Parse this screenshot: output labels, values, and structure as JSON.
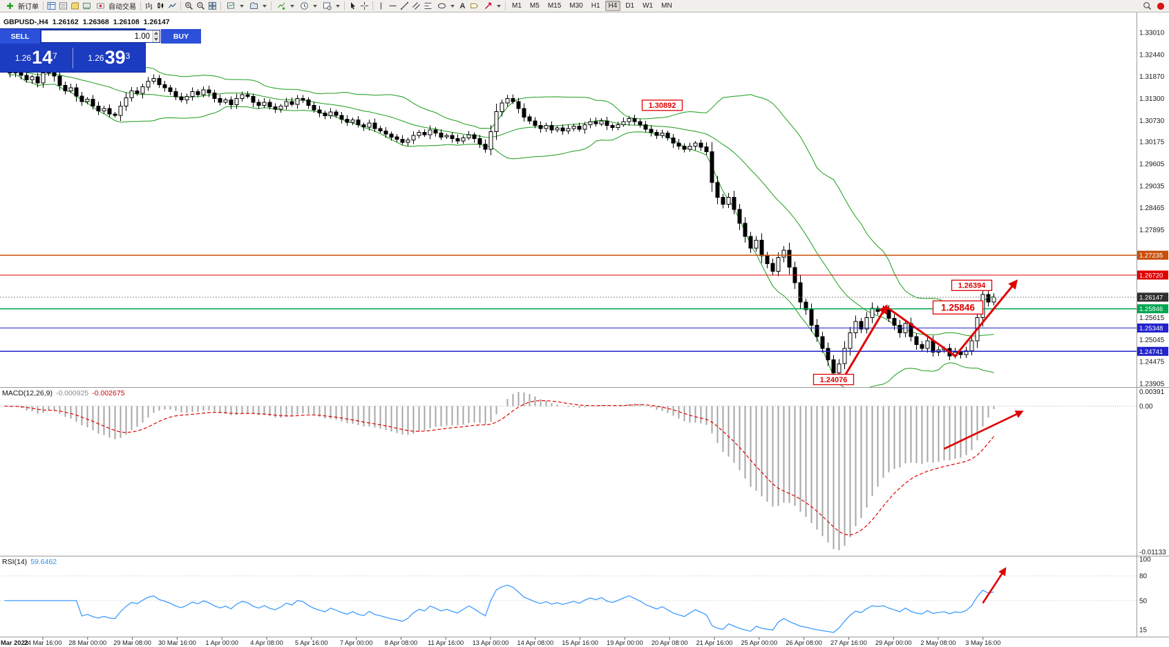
{
  "toolbar": {
    "new_order": "新订单",
    "autotrading": "自动交易",
    "text_tool_glyph": "A",
    "timeframes": [
      "M1",
      "M5",
      "M15",
      "M30",
      "H1",
      "H4",
      "D1",
      "W1",
      "MN"
    ],
    "active_timeframe": "H4"
  },
  "symbol_header": {
    "symbol": "GBPUSD-,H4",
    "open": "1.26162",
    "high": "1.26368",
    "low": "1.26108",
    "close": "1.26147"
  },
  "panel": {
    "sell_label": "SELL",
    "buy_label": "BUY",
    "volume": "1.00",
    "sell_price": {
      "prefix": "1.26",
      "big": "14",
      "sup": "7"
    },
    "buy_price": {
      "prefix": "1.26",
      "big": "39",
      "sup": "3"
    }
  },
  "indicators": {
    "bollinger": {
      "period": 20,
      "deviation": 2
    },
    "macd": {
      "label": "MACD(12,26,9)",
      "value1": "-0.000925",
      "value2": "-0.002675",
      "fast": 12,
      "slow": 26,
      "signal": 9
    },
    "rsi": {
      "label": "RSI(14)",
      "value": "59.6462",
      "period": 14
    }
  },
  "axes": {
    "price_labels": [
      "1.33010",
      "1.32440",
      "1.31870",
      "1.31300",
      "1.30730",
      "1.30175",
      "1.29605",
      "1.29035",
      "1.28465",
      "1.27895",
      "1.25615",
      "1.25045",
      "1.24475",
      "1.23905"
    ],
    "level_boxes": [
      {
        "text": "1.27235",
        "price": 1.27235,
        "color": "#C8500A"
      },
      {
        "text": "1.26720",
        "price": 1.2672,
        "color": "#E00000"
      },
      {
        "text": "1.25846",
        "price": 1.25846,
        "color": "#00A650"
      },
      {
        "text": "1.25348",
        "price": 1.25348,
        "color": "#2323CC"
      },
      {
        "text": "1.24741",
        "price": 1.24741,
        "color": "#2323CC"
      }
    ],
    "current_price": {
      "text": "1.26147",
      "price": 1.26147,
      "color": "#2F2F2F"
    },
    "macd_labels": [
      "0.00391",
      "0.00",
      "-0.01133"
    ],
    "rsi_labels": [
      {
        "text": "100",
        "value": 100
      },
      {
        "text": "80",
        "value": 80
      },
      {
        "text": "50",
        "value": 50
      },
      {
        "text": "15",
        "value": 15
      }
    ],
    "dates": [
      "Mar 2022",
      "24 Mar 16:00",
      "28 Mar 00:00",
      "29 Mar 08:00",
      "30 Mar 16:00",
      "1 Apr 00:00",
      "4 Apr 08:00",
      "5 Apr 16:00",
      "7 Apr 00:00",
      "8 Apr 08:00",
      "11 Apr 16:00",
      "13 Apr 00:00",
      "14 Apr 08:00",
      "15 Apr 16:00",
      "19 Apr 00:00",
      "20 Apr 08:00",
      "21 Apr 16:00",
      "25 Apr 00:00",
      "26 Apr 08:00",
      "27 Apr 16:00",
      "29 Apr 00:00",
      "2 May 08:00",
      "3 May 16:00"
    ]
  },
  "annotations": {
    "boxes": [
      {
        "text": "1.30892",
        "idx": 119,
        "price": 1.31124,
        "size": "small"
      },
      {
        "text": "1.26394",
        "idx": 175,
        "price": 1.26454,
        "size": "small"
      },
      {
        "text": "1.25846",
        "idx": 172.5,
        "price": 1.2588,
        "size": "large"
      },
      {
        "text": "1.24076",
        "idx": 150,
        "price": 1.24012,
        "size": "small"
      }
    ],
    "trend": [
      [
        152,
        1.241
      ],
      [
        159.5,
        1.259
      ],
      [
        172,
        1.2462
      ],
      [
        183,
        1.2655
      ]
    ],
    "macd_arrow": {
      "from": [
        170,
        -0.0037
      ],
      "to": [
        184,
        -0.0005
      ]
    },
    "rsi_arrow": {
      "from": [
        177,
        47
      ],
      "to": [
        181,
        88
      ]
    }
  },
  "chart_data": {
    "type": "candlestick",
    "symbol": "GBPUSD",
    "timeframe": "H4",
    "indicators": [
      "Bollinger Bands(20,2)",
      "MACD(12,26,9)",
      "RSI(14)"
    ],
    "price_range": {
      "top": 1.33531,
      "bottom": 1.23815
    },
    "closes": [
      1.3208,
      1.3196,
      1.3211,
      1.319,
      1.3178,
      1.3186,
      1.317,
      1.3196,
      1.3212,
      1.3188,
      1.3164,
      1.315,
      1.3158,
      1.3136,
      1.3122,
      1.3128,
      1.311,
      1.3098,
      1.3104,
      1.309,
      1.3086,
      1.311,
      1.3132,
      1.315,
      1.3143,
      1.316,
      1.3175,
      1.3182,
      1.3166,
      1.3158,
      1.3148,
      1.3134,
      1.3126,
      1.3135,
      1.3148,
      1.314,
      1.3152,
      1.3144,
      1.313,
      1.312,
      1.3126,
      1.3114,
      1.313,
      1.314,
      1.3135,
      1.312,
      1.3112,
      1.312,
      1.3108,
      1.3102,
      1.311,
      1.3122,
      1.3115,
      1.313,
      1.3126,
      1.3112,
      1.31,
      1.3092,
      1.3085,
      1.3095,
      1.3086,
      1.3076,
      1.3068,
      1.3074,
      1.3062,
      1.3056,
      1.3066,
      1.3052,
      1.3046,
      1.3038,
      1.303,
      1.3024,
      1.3016,
      1.3022,
      1.3034,
      1.3042,
      1.3036,
      1.3048,
      1.304,
      1.303,
      1.3034,
      1.3026,
      1.302,
      1.3028,
      1.3036,
      1.3026,
      1.3012,
      1.2998,
      1.3044,
      1.3096,
      1.3118,
      1.313,
      1.3122,
      1.3104,
      1.3082,
      1.3072,
      1.306,
      1.3052,
      1.306,
      1.3048,
      1.3054,
      1.3046,
      1.3052,
      1.3058,
      1.305,
      1.3062,
      1.307,
      1.3064,
      1.3072,
      1.306,
      1.3055,
      1.3062,
      1.307,
      1.3078,
      1.307,
      1.3062,
      1.305,
      1.3042,
      1.3034,
      1.304,
      1.3028,
      1.3014,
      1.3006,
      1.2998,
      1.3006,
      1.3014,
      1.3004,
      1.2992,
      1.2912,
      1.2874,
      1.2856,
      1.2874,
      1.2842,
      1.2806,
      1.2772,
      1.2742,
      1.2762,
      1.2722,
      1.2702,
      1.2682,
      1.2718,
      1.2736,
      1.2692,
      1.2652,
      1.2602,
      1.2582,
      1.2542,
      1.2512,
      1.2482,
      1.2452,
      1.2418,
      1.2442,
      1.2482,
      1.2522,
      1.2552,
      1.2532,
      1.2562,
      1.2586,
      1.2578,
      1.2584,
      1.256,
      1.2542,
      1.2522,
      1.2546,
      1.2512,
      1.2492,
      1.2482,
      1.2502,
      1.2472,
      1.2478,
      1.2482,
      1.2462,
      1.2472,
      1.2466,
      1.2476,
      1.2502,
      1.2562,
      1.2622,
      1.2602,
      1.26147
    ]
  }
}
